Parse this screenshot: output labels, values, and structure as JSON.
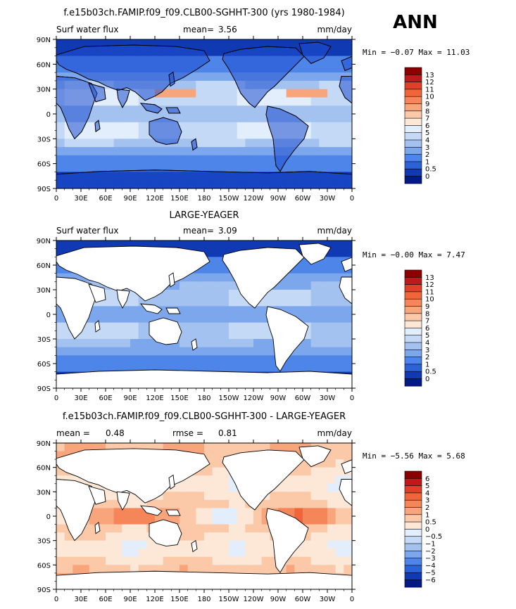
{
  "season": "ANN",
  "x_ticks": [
    "0",
    "30E",
    "60E",
    "90E",
    "120E",
    "150E",
    "180",
    "150W",
    "120W",
    "90W",
    "60W",
    "30W",
    "0"
  ],
  "y_ticks": [
    "90N",
    "60N",
    "30N",
    "0",
    "30S",
    "60S",
    "90S"
  ],
  "panels": [
    {
      "title": "f.e15b03ch.FAMIP.f09_f09.CLB00-SGHHT-300 (yrs 1980-1984)",
      "left_label": "Surf water flux",
      "stat_label": "mean=",
      "stat_value": "3.56",
      "units": "mm/day",
      "minmax": "Min =  −0.07  Max =  11.03",
      "legend": [
        "13",
        "12",
        "11",
        "10",
        "9",
        "8",
        "7",
        "6",
        "5",
        "4",
        "3",
        "2",
        "1",
        "0.5",
        "0"
      ],
      "colors": [
        "#8b0000",
        "#c0191b",
        "#e0402a",
        "#f0663a",
        "#f4865a",
        "#f8a57c",
        "#fbc8a8",
        "#fde8d8",
        "#e2eefb",
        "#c4d9f6",
        "#a3c2f0",
        "#7da7ec",
        "#4e85e8",
        "#2b62d8",
        "#103ab4",
        "#021a86"
      ]
    },
    {
      "title": "LARGE-YEAGER",
      "left_label": "Surf water flux",
      "stat_label": "mean=",
      "stat_value": "3.09",
      "units": "mm/day",
      "minmax": "Min =  −0.00  Max =   7.47",
      "legend": [
        "13",
        "12",
        "11",
        "10",
        "9",
        "8",
        "7",
        "6",
        "5",
        "4",
        "3",
        "2",
        "1",
        "0.5",
        "0"
      ],
      "colors": [
        "#8b0000",
        "#c0191b",
        "#e0402a",
        "#f0663a",
        "#f4865a",
        "#f8a57c",
        "#fbc8a8",
        "#fde8d8",
        "#e2eefb",
        "#c4d9f6",
        "#a3c2f0",
        "#7da7ec",
        "#4e85e8",
        "#2b62d8",
        "#103ab4",
        "#021a86"
      ]
    },
    {
      "title": "f.e15b03ch.FAMIP.f09_f09.CLB00-SGHHT-300 - LARGE-YEAGER",
      "left_label": "mean =",
      "left_value": "0.48",
      "stat_label": "rmse =",
      "stat_value": "0.81",
      "units": "mm/day",
      "minmax": "Min =  −5.56  Max =   5.68",
      "legend": [
        "6",
        "5",
        "4",
        "3",
        "2",
        "1",
        "0.5",
        "0",
        "−0.5",
        "−1",
        "−2",
        "−3",
        "−4",
        "−5",
        "−6"
      ],
      "colors": [
        "#8b0000",
        "#c0191b",
        "#e0402a",
        "#f0663a",
        "#f4865a",
        "#f8a57c",
        "#fbc8a8",
        "#fde8d8",
        "#e2eefb",
        "#c4d9f6",
        "#a3c2f0",
        "#7da7ec",
        "#4e85e8",
        "#2b62d8",
        "#103ab4",
        "#021a86"
      ]
    }
  ],
  "chart_data": {
    "type": "heatmap",
    "variable": "Surf water flux",
    "units": "mm/day",
    "season": "ANN",
    "x_range": [
      0,
      360
    ],
    "y_range": [
      -90,
      90
    ],
    "x_ticks": [
      "0",
      "30E",
      "60E",
      "90E",
      "120E",
      "150E",
      "180",
      "150W",
      "120W",
      "90W",
      "60W",
      "30W",
      "0"
    ],
    "y_ticks": [
      "90N",
      "60N",
      "30N",
      "0",
      "30S",
      "60S",
      "90S"
    ],
    "maps": [
      {
        "title": "f.e15b03ch.FAMIP.f09_f09.CLB00-SGHHT-300 (yrs 1980-1984)",
        "mean": 3.56,
        "min": -0.07,
        "max": 11.03,
        "levels": [
          0,
          0.5,
          1,
          2,
          3,
          4,
          5,
          6,
          7,
          8,
          9,
          10,
          11,
          12,
          13
        ]
      },
      {
        "title": "LARGE-YEAGER",
        "mean": 3.09,
        "min": -0.0,
        "max": 7.47,
        "levels": [
          0,
          0.5,
          1,
          2,
          3,
          4,
          5,
          6,
          7,
          8,
          9,
          10,
          11,
          12,
          13
        ]
      },
      {
        "title": "f.e15b03ch.FAMIP.f09_f09.CLB00-SGHHT-300 - LARGE-YEAGER",
        "mean": 0.48,
        "rmse": 0.81,
        "min": -5.56,
        "max": 5.68,
        "levels": [
          -6,
          -5,
          -4,
          -3,
          -2,
          -1,
          -0.5,
          0,
          0.5,
          1,
          2,
          3,
          4,
          5,
          6
        ]
      }
    ]
  }
}
